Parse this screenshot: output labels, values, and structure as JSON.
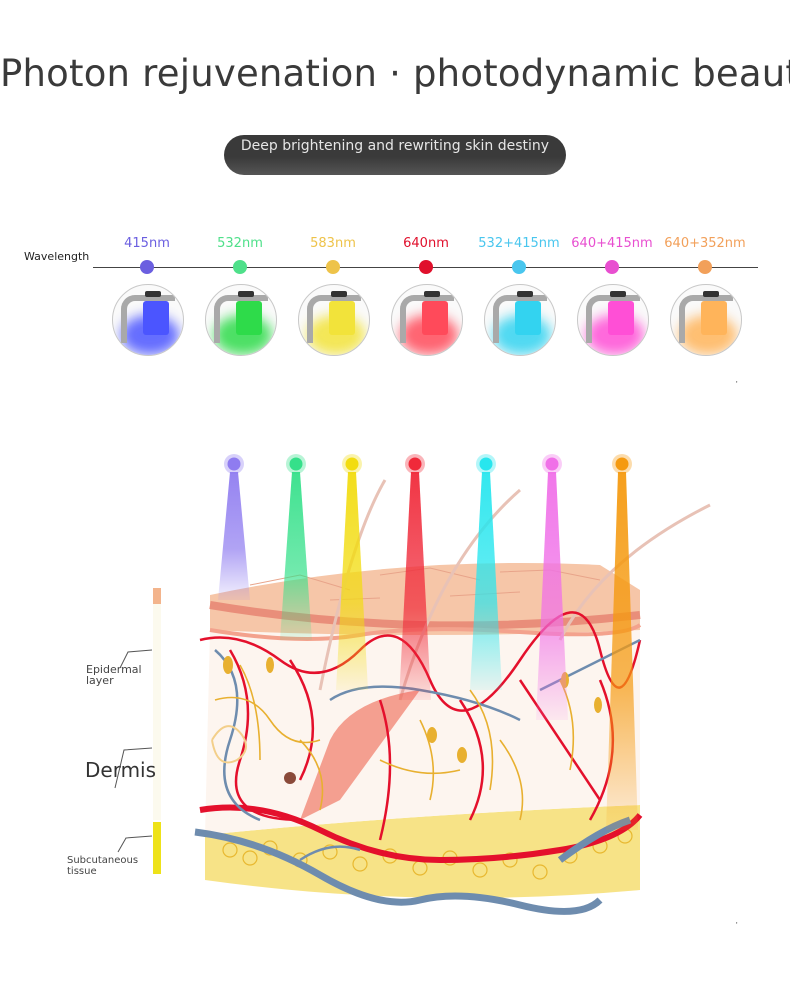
{
  "title": "Photon rejuvenation · photodynamic beauty",
  "subtitle": "Deep brightening and rewriting skin destiny",
  "wavelength_label": "Wavelength",
  "wavelengths": [
    {
      "label": "415nm",
      "color": "#6b5fe0",
      "glow": "#4b55ff"
    },
    {
      "label": "532nm",
      "color": "#4fe08a",
      "glow": "#2edb4a"
    },
    {
      "label": "583nm",
      "color": "#eec34a",
      "glow": "#f2e33a"
    },
    {
      "label": "640nm",
      "color": "#e0102c",
      "glow": "#ff4a5a"
    },
    {
      "label": "532+415nm",
      "color": "#49c6ee",
      "glow": "#33d3f0"
    },
    {
      "label": "640+415nm",
      "color": "#e84fd0",
      "glow": "#ff4fd6"
    },
    {
      "label": "640+352nm",
      "color": "#f2a05a",
      "glow": "#ffb45a"
    }
  ],
  "layers": {
    "epidermal": "Epidermal\nlayer",
    "dermis": "Dermis",
    "subcutaneous": "Subcutaneous\ntissue"
  },
  "beam_colors": [
    "#8f7cf0",
    "#35e08a",
    "#f2dc10",
    "#f02a3a",
    "#28e6ee",
    "#f070e8",
    "#f59a10"
  ]
}
